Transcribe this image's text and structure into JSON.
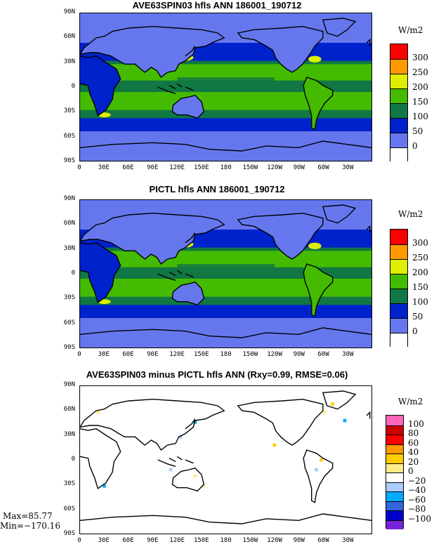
{
  "panels": [
    {
      "title": "AVE63SPIN03 hfls ANN 186001_190712",
      "units": "W/m2",
      "colorbar": {
        "labels": [
          "300",
          "250",
          "200",
          "150",
          "100",
          "50",
          "0"
        ],
        "colors": [
          "#ff0000",
          "#ff9900",
          "#ddee00",
          "#44bb00",
          "#117744",
          "#0022cc",
          "#6677ee",
          "#ffffff"
        ]
      }
    },
    {
      "title": "PICTL hfls ANN 186001_190712",
      "units": "W/m2",
      "colorbar": {
        "labels": [
          "300",
          "250",
          "200",
          "150",
          "100",
          "50",
          "0"
        ],
        "colors": [
          "#ff0000",
          "#ff9900",
          "#ddee00",
          "#44bb00",
          "#117744",
          "#0022cc",
          "#6677ee",
          "#ffffff"
        ]
      }
    },
    {
      "title": "AVE63SPIN03 minus PICTL hfls ANN (Rxy=0.99, RMSE=0.06)",
      "units": "W/m2",
      "colorbar": {
        "labels": [
          "100",
          "80",
          "60",
          "40",
          "20",
          "0",
          "−20",
          "−40",
          "−60",
          "−80",
          "−100"
        ],
        "colors": [
          "#ff66bb",
          "#cc0000",
          "#ff0000",
          "#ff9900",
          "#ffcc00",
          "#ffee88",
          "#ffffff",
          "#aaccff",
          "#00aaff",
          "#3366dd",
          "#0000cc",
          "#7722dd"
        ]
      },
      "stats": {
        "max": "Max=85.77",
        "min": "Min=−170.16"
      }
    }
  ],
  "axes": {
    "lat_labels": [
      "90N",
      "60N",
      "30N",
      "0",
      "30S",
      "60S",
      "90S"
    ],
    "lon_labels": [
      "0",
      "30E",
      "60E",
      "90E",
      "120E",
      "150E",
      "180",
      "150W",
      "120W",
      "90W",
      "60W",
      "30W"
    ]
  },
  "map_colors": {
    "ocean_base": "#6677ee",
    "mid": "#0022cc",
    "green_dark": "#117744",
    "green": "#44bb00",
    "yellow": "#ddee00",
    "orange": "#ff9900",
    "land_outline": "#000000"
  }
}
